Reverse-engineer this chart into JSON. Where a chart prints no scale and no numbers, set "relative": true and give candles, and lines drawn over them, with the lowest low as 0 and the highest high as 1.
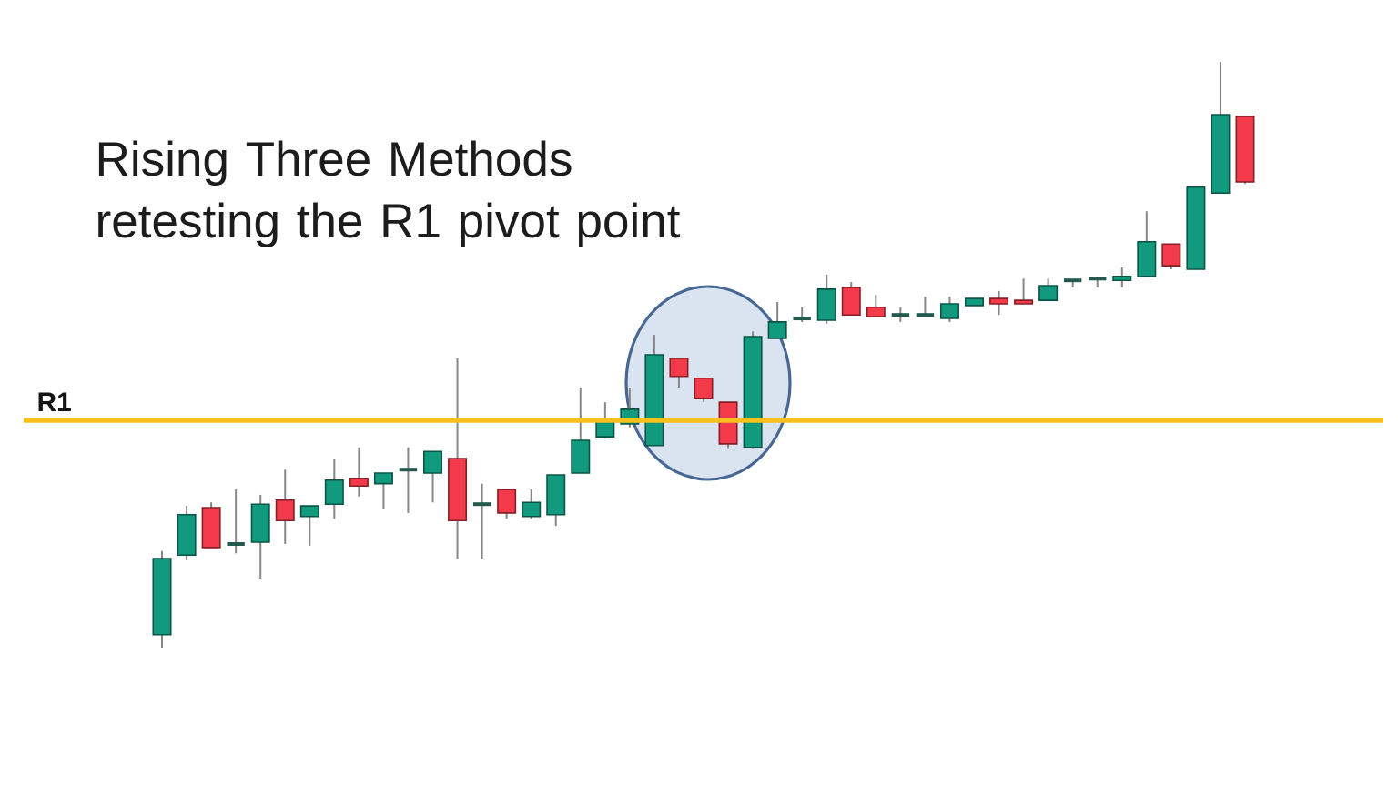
{
  "chart_data": {
    "type": "candlestick",
    "title": "Rising Three Methods retesting the R1 pivot point",
    "relative": true,
    "categories": [
      null,
      null,
      null,
      null,
      null,
      null,
      null,
      null,
      null,
      null,
      null,
      null,
      null,
      null,
      null,
      null,
      null,
      null,
      null,
      null,
      null,
      null,
      null,
      null,
      null,
      null,
      null,
      null,
      null,
      null,
      null,
      null,
      null,
      null,
      null,
      null,
      null,
      null,
      null,
      null,
      null,
      null,
      null,
      null,
      null
    ],
    "ohlc": [
      [
        0.022,
        0.165,
        0,
        0.152
      ],
      [
        0.158,
        0.242,
        0.149,
        0.227
      ],
      [
        0.239,
        0.248,
        0.171,
        0.171
      ],
      [
        0.177,
        0.27,
        0.161,
        0.177
      ],
      [
        0.18,
        0.261,
        0.118,
        0.245
      ],
      [
        0.252,
        0.304,
        0.177,
        0.217
      ],
      [
        0.224,
        0.242,
        0.174,
        0.242
      ],
      [
        0.245,
        0.323,
        0.22,
        0.286
      ],
      [
        0.289,
        0.342,
        0.258,
        0.276
      ],
      [
        0.28,
        0.298,
        0.236,
        0.298
      ],
      [
        0.304,
        0.342,
        0.23,
        0.304
      ],
      [
        0.298,
        0.335,
        0.248,
        0.335
      ],
      [
        0.323,
        0.494,
        0.152,
        0.217
      ],
      [
        0.245,
        0.28,
        0.152,
        0.245
      ],
      [
        0.27,
        0.27,
        0.22,
        0.23
      ],
      [
        0.224,
        0.27,
        0.22,
        0.248
      ],
      [
        0.227,
        0.295,
        0.208,
        0.295
      ],
      [
        0.298,
        0.444,
        0.298,
        0.354
      ],
      [
        0.36,
        0.419,
        0.357,
        0.388
      ],
      [
        0.382,
        0.444,
        0.376,
        0.407
      ],
      [
        0.345,
        0.534,
        0.345,
        0.5
      ],
      [
        0.494,
        0.494,
        0.444,
        0.463
      ],
      [
        0.46,
        0.46,
        0.419,
        0.425
      ],
      [
        0.419,
        0.419,
        0.339,
        0.348
      ],
      [
        0.342,
        0.54,
        0.339,
        0.531
      ],
      [
        0.528,
        0.59,
        0.528,
        0.556
      ],
      [
        0.562,
        0.581,
        0.556,
        0.562
      ],
      [
        0.559,
        0.637,
        0.553,
        0.612
      ],
      [
        0.615,
        0.624,
        0.568,
        0.568
      ],
      [
        0.581,
        0.602,
        0.565,
        0.565
      ],
      [
        0.568,
        0.581,
        0.556,
        0.568
      ],
      [
        0.568,
        0.599,
        0.568,
        0.568
      ],
      [
        0.562,
        0.599,
        0.556,
        0.587
      ],
      [
        0.584,
        0.596,
        0.584,
        0.596
      ],
      [
        0.596,
        0.609,
        0.568,
        0.587
      ],
      [
        0.593,
        0.63,
        0.587,
        0.587
      ],
      [
        0.593,
        0.63,
        0.593,
        0.618
      ],
      [
        0.627,
        0.627,
        0.615,
        0.627
      ],
      [
        0.63,
        0.63,
        0.615,
        0.63
      ],
      [
        0.627,
        0.649,
        0.615,
        0.634
      ],
      [
        0.634,
        0.745,
        0.634,
        0.693
      ],
      [
        0.689,
        0.689,
        0.646,
        0.652
      ],
      [
        0.646,
        0.786,
        0.646,
        0.786
      ],
      [
        0.776,
        1,
        0.776,
        0.91
      ],
      [
        0.907,
        0.907,
        0.792,
        0.795
      ]
    ],
    "colors": [
      "#129a7f",
      "#129a7f",
      "#f23a4b",
      "#24594e",
      "#129a7f",
      "#f23a4b",
      "#129a7f",
      "#129a7f",
      "#f23a4b",
      "#129a7f",
      "#24594e",
      "#129a7f",
      "#f23a4b",
      "#24594e",
      "#f23a4b",
      "#129a7f",
      "#129a7f",
      "#129a7f",
      "#129a7f",
      "#129a7f",
      "#129a7f",
      "#f23a4b",
      "#f23a4b",
      "#f23a4b",
      "#129a7f",
      "#129a7f",
      "#24594e",
      "#129a7f",
      "#f23a4b",
      "#f23a4b",
      "#24594e",
      "#24594e",
      "#129a7f",
      "#129a7f",
      "#f23a4b",
      "#f23a4b",
      "#129a7f",
      "#24594e",
      "#24594e",
      "#129a7f",
      "#129a7f",
      "#f23a4b",
      "#129a7f",
      "#129a7f",
      "#f23a4b"
    ],
    "ref_lines": [
      {
        "axis": "y",
        "value": 0.388,
        "label": "R1",
        "color": "#f8c01c"
      }
    ]
  }
}
